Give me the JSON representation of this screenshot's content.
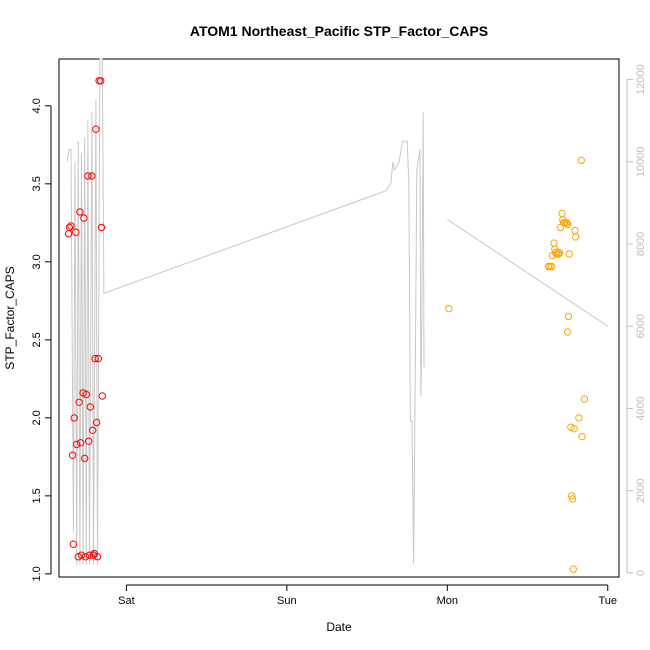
{
  "chart_data": {
    "type": "scatter",
    "title": "ATOM1 Northeast_Pacific STP_Factor_CAPS",
    "xlabel": "Date",
    "ylabel": "STP_Factor_CAPS",
    "x_ticks": [
      {
        "label": "Sat",
        "x": 0
      },
      {
        "label": "Sun",
        "x": 1
      },
      {
        "label": "Mon",
        "x": 2
      },
      {
        "label": "Tue",
        "x": 3
      }
    ],
    "xlim": [
      -0.42,
      3.07
    ],
    "ylim": [
      0.98,
      4.3
    ],
    "y_ticks": [
      1.0,
      1.5,
      2.0,
      2.5,
      3.0,
      3.5,
      4.0
    ],
    "y_tick_labels": [
      "1.0",
      "1.5",
      "2.0",
      "2.5",
      "3.0",
      "3.5",
      "4.0"
    ],
    "right_axis": {
      "ylim": [
        -100,
        12500
      ],
      "ticks": [
        0,
        2000,
        4000,
        6000,
        8000,
        10000,
        12000
      ],
      "tick_labels": [
        "0",
        "2000",
        "4000",
        "6000",
        "8000",
        "10000",
        "12000"
      ],
      "color": "#bdbdbd"
    },
    "grid": false,
    "legend": "none",
    "series": [
      {
        "color": "#ff0000",
        "marker": "open-circle",
        "points": [
          [
            -0.36,
            3.18
          ],
          [
            -0.355,
            3.22
          ],
          [
            -0.345,
            3.23
          ],
          [
            -0.335,
            1.76
          ],
          [
            -0.33,
            1.19
          ],
          [
            -0.325,
            2.0
          ],
          [
            -0.315,
            3.19
          ],
          [
            -0.31,
            1.83
          ],
          [
            -0.3,
            1.11
          ],
          [
            -0.295,
            2.1
          ],
          [
            -0.29,
            3.32
          ],
          [
            -0.285,
            1.84
          ],
          [
            -0.28,
            1.12
          ],
          [
            -0.27,
            2.16
          ],
          [
            -0.265,
            3.28
          ],
          [
            -0.26,
            1.74
          ],
          [
            -0.255,
            1.11
          ],
          [
            -0.25,
            2.15
          ],
          [
            -0.24,
            3.55
          ],
          [
            -0.235,
            1.85
          ],
          [
            -0.23,
            1.12
          ],
          [
            -0.225,
            2.07
          ],
          [
            -0.215,
            3.55
          ],
          [
            -0.21,
            1.92
          ],
          [
            -0.205,
            1.12
          ],
          [
            -0.2,
            1.13
          ],
          [
            -0.195,
            2.38
          ],
          [
            -0.19,
            3.85
          ],
          [
            -0.185,
            1.97
          ],
          [
            -0.18,
            1.11
          ],
          [
            -0.175,
            2.38
          ],
          [
            -0.17,
            4.16
          ],
          [
            -0.16,
            4.16
          ],
          [
            -0.155,
            3.22
          ],
          [
            -0.15,
            2.14
          ]
        ]
      },
      {
        "color": "#ffa500",
        "marker": "open-circle",
        "points": [
          [
            2.01,
            2.7
          ],
          [
            2.63,
            2.97
          ],
          [
            2.64,
            2.97
          ],
          [
            2.65,
            2.97
          ],
          [
            2.655,
            3.04
          ],
          [
            2.665,
            3.12
          ],
          [
            2.67,
            3.08
          ],
          [
            2.675,
            3.06
          ],
          [
            2.68,
            3.05
          ],
          [
            2.69,
            3.05
          ],
          [
            2.695,
            3.05
          ],
          [
            2.7,
            3.06
          ],
          [
            2.705,
            3.22
          ],
          [
            2.715,
            3.31
          ],
          [
            2.72,
            3.27
          ],
          [
            2.725,
            3.25
          ],
          [
            2.73,
            3.25
          ],
          [
            2.74,
            3.25
          ],
          [
            2.745,
            3.25
          ],
          [
            2.75,
            3.24
          ],
          [
            2.75,
            2.55
          ],
          [
            2.755,
            2.65
          ],
          [
            2.76,
            3.05
          ],
          [
            2.77,
            1.94
          ],
          [
            2.775,
            1.5
          ],
          [
            2.78,
            1.48
          ],
          [
            2.785,
            1.03
          ],
          [
            2.79,
            1.93
          ],
          [
            2.795,
            3.2
          ],
          [
            2.8,
            3.16
          ],
          [
            2.82,
            2.0
          ],
          [
            2.835,
            3.65
          ],
          [
            2.84,
            1.88
          ],
          [
            2.855,
            2.12
          ]
        ]
      }
    ],
    "gray_series": {
      "color": "#c8c8c8",
      "axis": "right",
      "segments": [
        [
          [
            -0.37,
            10000
          ],
          [
            -0.355,
            10300
          ],
          [
            -0.345,
            10300
          ],
          [
            -0.33,
            1000
          ],
          [
            -0.32,
            10000
          ],
          [
            -0.31,
            200
          ],
          [
            -0.3,
            10500
          ],
          [
            -0.29,
            200
          ],
          [
            -0.28,
            10200
          ],
          [
            -0.27,
            200
          ],
          [
            -0.26,
            10600
          ],
          [
            -0.25,
            200
          ],
          [
            -0.24,
            11000
          ],
          [
            -0.23,
            200
          ],
          [
            -0.215,
            11200
          ],
          [
            -0.205,
            200
          ],
          [
            -0.19,
            11500
          ],
          [
            -0.18,
            200
          ],
          [
            -0.165,
            12500
          ],
          [
            -0.15,
            12500
          ],
          [
            -0.14,
            6800
          ],
          [
            1.62,
            9300
          ],
          [
            1.65,
            9500
          ],
          [
            1.66,
            10000
          ],
          [
            1.67,
            9800
          ],
          [
            1.7,
            10000
          ],
          [
            1.72,
            10500
          ],
          [
            1.75,
            10500
          ],
          [
            1.76,
            9500
          ],
          [
            1.77,
            3700
          ],
          [
            1.78,
            3700
          ],
          [
            1.79,
            200
          ],
          [
            1.8,
            4600
          ],
          [
            1.81,
            9800
          ],
          [
            1.83,
            10300
          ],
          [
            1.835,
            4300
          ],
          [
            1.84,
            5300
          ],
          [
            1.85,
            11200
          ],
          [
            1.855,
            5000
          ]
        ],
        [
          [
            2.0,
            8600
          ],
          [
            3.0,
            6000
          ]
        ]
      ]
    }
  }
}
